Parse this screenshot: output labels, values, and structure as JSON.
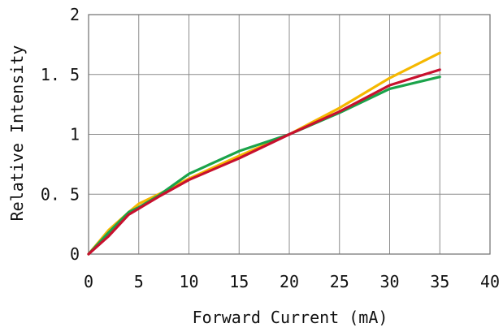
{
  "chart_data": {
    "type": "line",
    "xlabel": "Forward Current (mA)",
    "ylabel": "Relative Intensity",
    "xlim": [
      0,
      40
    ],
    "ylim": [
      0,
      2
    ],
    "x_ticks": [
      0,
      5,
      10,
      15,
      20,
      25,
      30,
      35,
      40
    ],
    "y_ticks": [
      0,
      0.5,
      1,
      1.5,
      2
    ],
    "x_tick_labels": [
      "0",
      "5",
      "10",
      "15",
      "20",
      "25",
      "30",
      "35",
      "40"
    ],
    "y_tick_labels": [
      "0",
      "0. 5",
      "1",
      "1. 5",
      "2"
    ],
    "grid": true,
    "legend": "none",
    "series": [
      {
        "color": "#f5b800",
        "points": [
          [
            0,
            0
          ],
          [
            2,
            0.2
          ],
          [
            4,
            0.35
          ],
          [
            5,
            0.42
          ],
          [
            7,
            0.5
          ],
          [
            10,
            0.63
          ],
          [
            15,
            0.82
          ],
          [
            20,
            1.0
          ],
          [
            25,
            1.22
          ],
          [
            30,
            1.47
          ],
          [
            35,
            1.68
          ]
        ]
      },
      {
        "color": "#1aa34a",
        "points": [
          [
            0,
            0
          ],
          [
            2,
            0.18
          ],
          [
            4,
            0.35
          ],
          [
            5,
            0.39
          ],
          [
            7,
            0.49
          ],
          [
            10,
            0.67
          ],
          [
            15,
            0.86
          ],
          [
            20,
            1.0
          ],
          [
            25,
            1.18
          ],
          [
            30,
            1.38
          ],
          [
            35,
            1.48
          ]
        ]
      },
      {
        "color": "#c8102e",
        "points": [
          [
            0,
            0
          ],
          [
            2,
            0.15
          ],
          [
            4,
            0.33
          ],
          [
            5,
            0.38
          ],
          [
            7,
            0.48
          ],
          [
            10,
            0.62
          ],
          [
            15,
            0.8
          ],
          [
            20,
            1.0
          ],
          [
            25,
            1.19
          ],
          [
            30,
            1.41
          ],
          [
            35,
            1.54
          ]
        ]
      }
    ]
  }
}
